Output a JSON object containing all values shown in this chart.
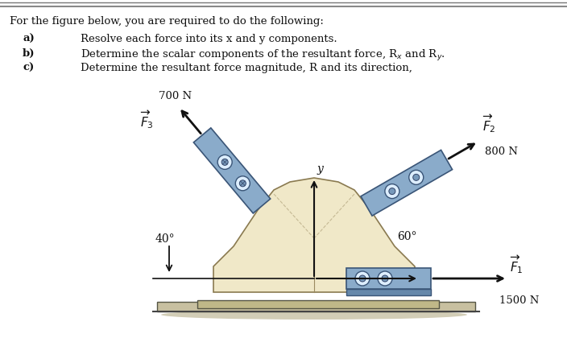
{
  "bg_color": "#ffffff",
  "body_color": "#f0e8c8",
  "bracket_color": "#8aabca",
  "bracket_dark": "#5577aa",
  "bracket_shine": "#aaccee",
  "base_color": "#d4c9a0",
  "dark": "#111111",
  "fig_width": 7.04,
  "fig_height": 4.52,
  "dpi": 100,
  "title": "For the figure below, you are required to do the following:",
  "items": [
    [
      "a)",
      "Resolve each force into its x and y components."
    ],
    [
      "b)",
      "Determine the scalar components of the resultant force, R_x and R_y."
    ],
    [
      "c)",
      "Determine the resultant force magnitude, R and its direction,"
    ]
  ]
}
